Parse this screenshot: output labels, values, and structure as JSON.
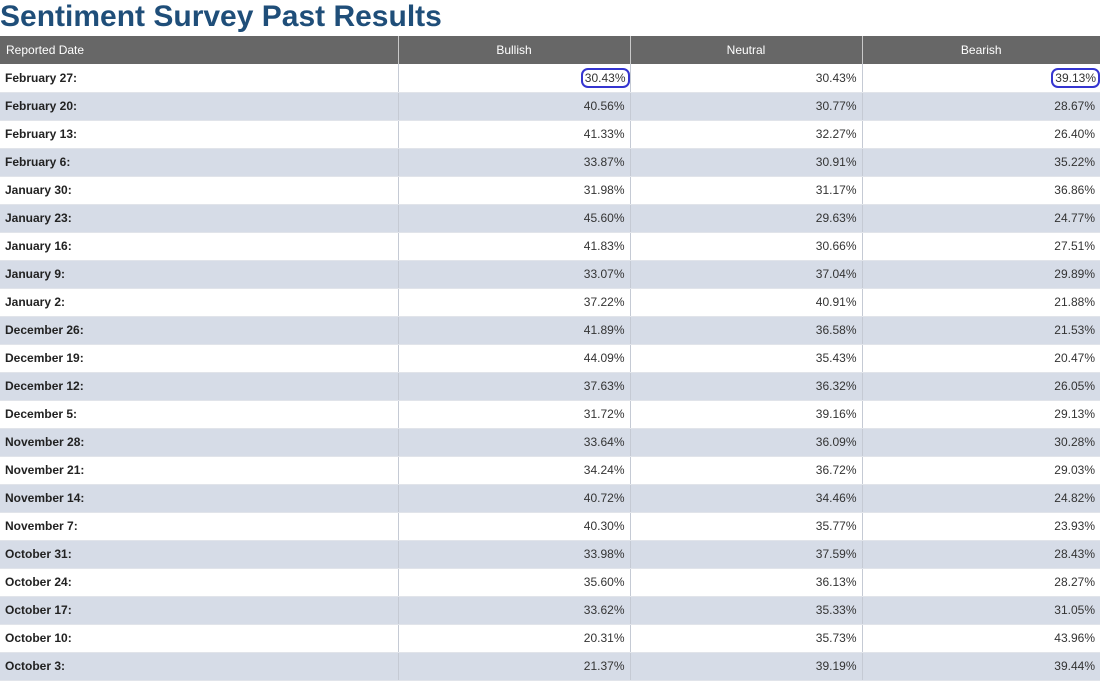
{
  "page": {
    "title": "Sentiment Survey Past Results"
  },
  "table": {
    "headers": [
      "Reported Date",
      "Bullish",
      "Neutral",
      "Bearish"
    ],
    "rows": [
      {
        "date": "February 27:",
        "bullish": "30.43%",
        "neutral": "30.43%",
        "bearish": "39.13%",
        "circled": [
          "bullish",
          "bearish"
        ]
      },
      {
        "date": "February 20:",
        "bullish": "40.56%",
        "neutral": "30.77%",
        "bearish": "28.67%"
      },
      {
        "date": "February 13:",
        "bullish": "41.33%",
        "neutral": "32.27%",
        "bearish": "26.40%"
      },
      {
        "date": "February 6:",
        "bullish": "33.87%",
        "neutral": "30.91%",
        "bearish": "35.22%"
      },
      {
        "date": "January 30:",
        "bullish": "31.98%",
        "neutral": "31.17%",
        "bearish": "36.86%"
      },
      {
        "date": "January 23:",
        "bullish": "45.60%",
        "neutral": "29.63%",
        "bearish": "24.77%"
      },
      {
        "date": "January 16:",
        "bullish": "41.83%",
        "neutral": "30.66%",
        "bearish": "27.51%"
      },
      {
        "date": "January 9:",
        "bullish": "33.07%",
        "neutral": "37.04%",
        "bearish": "29.89%"
      },
      {
        "date": "January 2:",
        "bullish": "37.22%",
        "neutral": "40.91%",
        "bearish": "21.88%"
      },
      {
        "date": "December 26:",
        "bullish": "41.89%",
        "neutral": "36.58%",
        "bearish": "21.53%"
      },
      {
        "date": "December 19:",
        "bullish": "44.09%",
        "neutral": "35.43%",
        "bearish": "20.47%"
      },
      {
        "date": "December 12:",
        "bullish": "37.63%",
        "neutral": "36.32%",
        "bearish": "26.05%"
      },
      {
        "date": "December 5:",
        "bullish": "31.72%",
        "neutral": "39.16%",
        "bearish": "29.13%"
      },
      {
        "date": "November 28:",
        "bullish": "33.64%",
        "neutral": "36.09%",
        "bearish": "30.28%"
      },
      {
        "date": "November 21:",
        "bullish": "34.24%",
        "neutral": "36.72%",
        "bearish": "29.03%"
      },
      {
        "date": "November 14:",
        "bullish": "40.72%",
        "neutral": "34.46%",
        "bearish": "24.82%"
      },
      {
        "date": "November 7:",
        "bullish": "40.30%",
        "neutral": "35.77%",
        "bearish": "23.93%"
      },
      {
        "date": "October 31:",
        "bullish": "33.98%",
        "neutral": "37.59%",
        "bearish": "28.43%"
      },
      {
        "date": "October 24:",
        "bullish": "35.60%",
        "neutral": "36.13%",
        "bearish": "28.27%"
      },
      {
        "date": "October 17:",
        "bullish": "33.62%",
        "neutral": "35.33%",
        "bearish": "31.05%"
      },
      {
        "date": "October 10:",
        "bullish": "20.31%",
        "neutral": "35.73%",
        "bearish": "43.96%"
      },
      {
        "date": "October 3:",
        "bullish": "21.37%",
        "neutral": "39.19%",
        "bearish": "39.44%"
      }
    ]
  },
  "colors": {
    "title": "#1f4e79",
    "header_bg": "#676767",
    "row_alt_bg": "#d6dce7",
    "highlight_ring": "#3535d0"
  }
}
